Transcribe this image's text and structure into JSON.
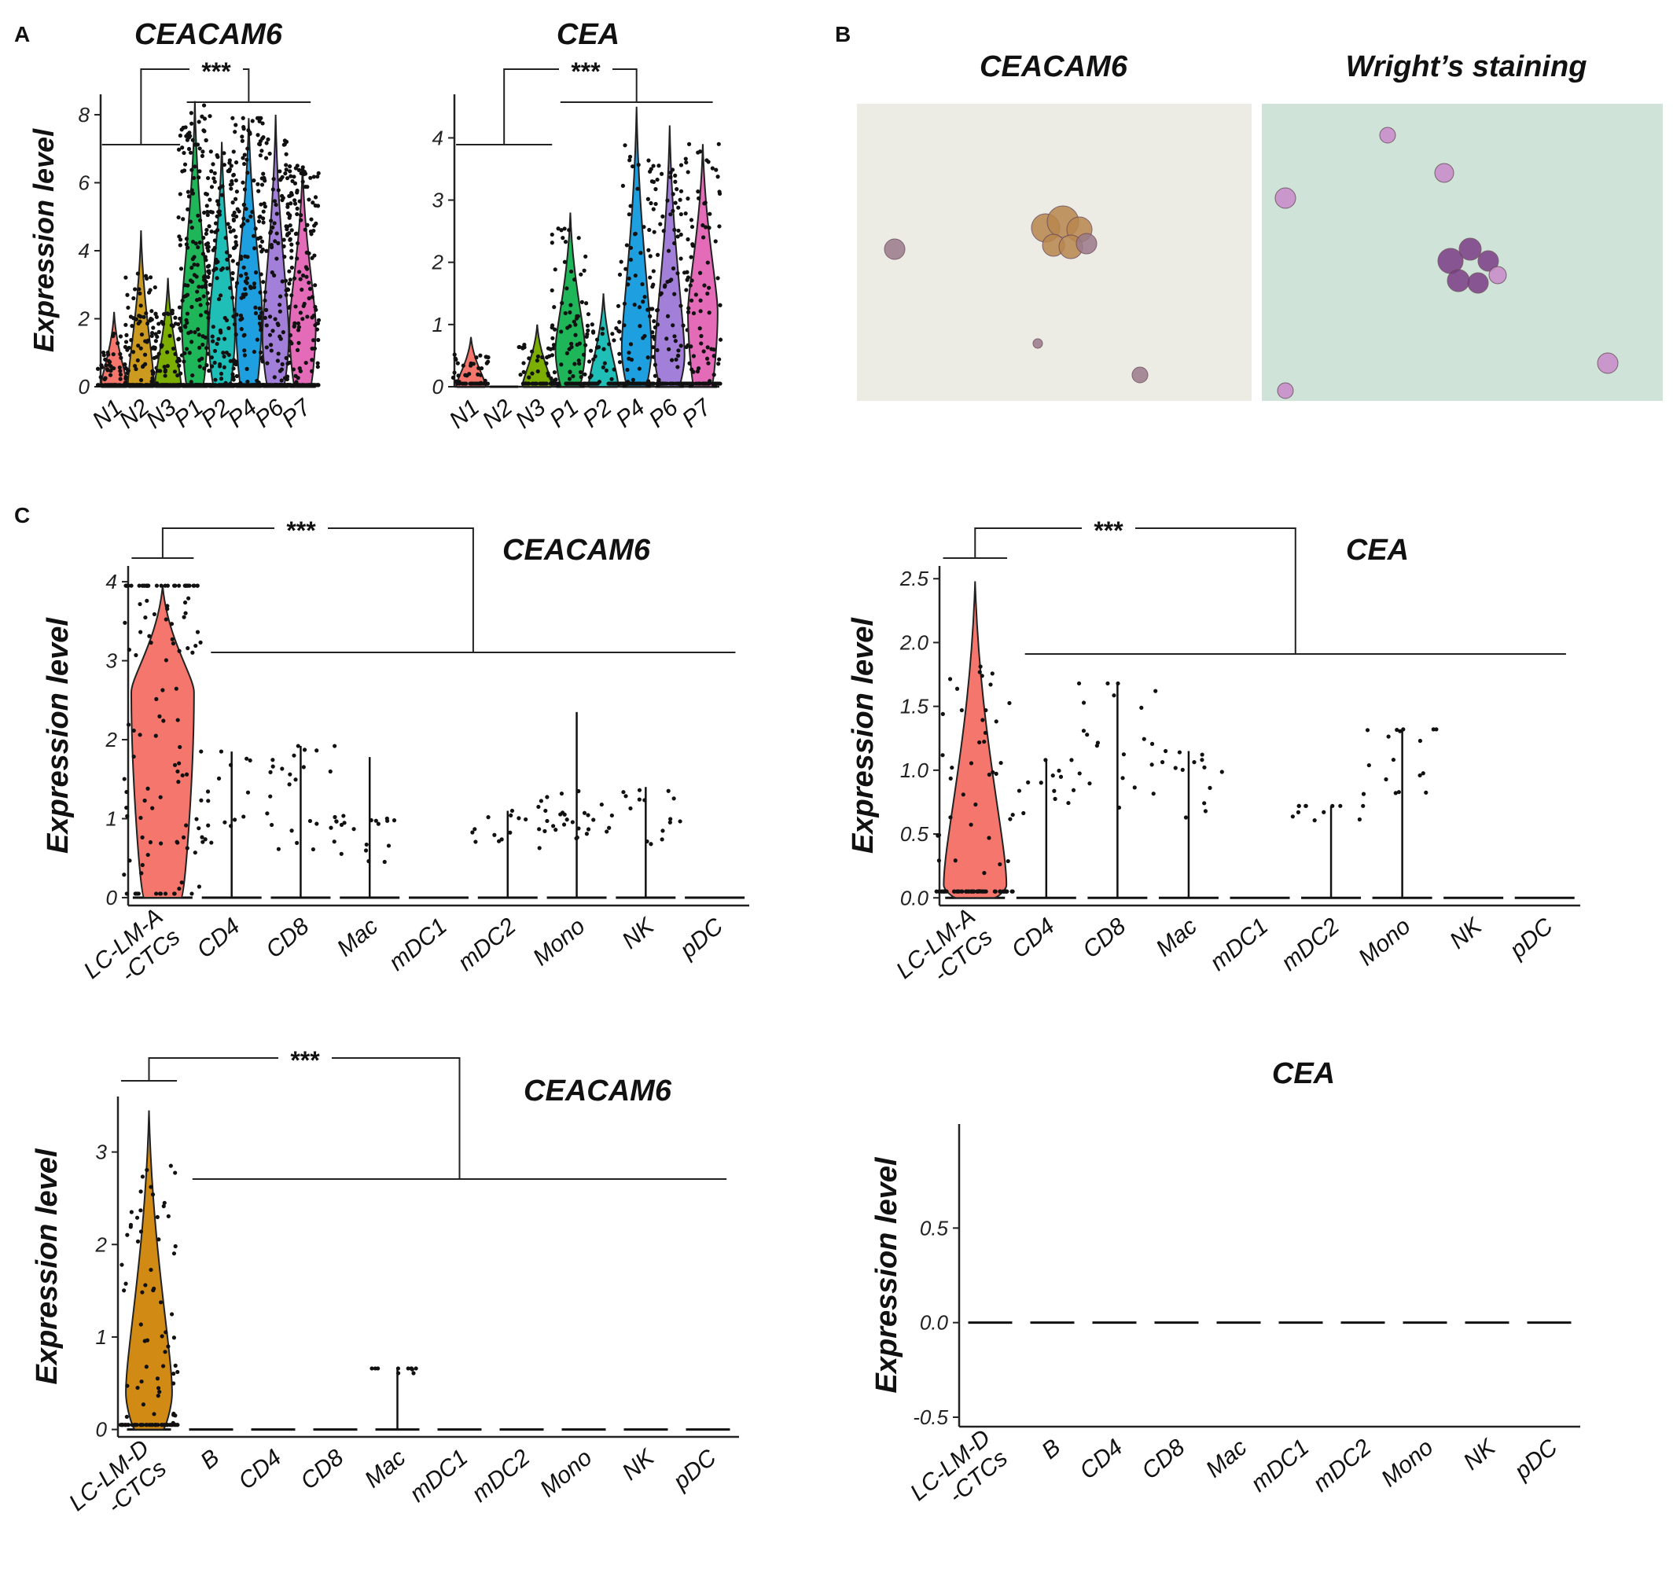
{
  "panel_labels": [
    "A",
    "B",
    "C"
  ],
  "images": [
    {
      "title": "CEACAM6",
      "background": "#ecebe4",
      "cell_colors": [
        "#b9874e",
        "#9a7a8a"
      ]
    },
    {
      "title": "Wright’s staining",
      "background": "#cfe3d9",
      "cell_colors": [
        "#c98ac9",
        "#7a3d86"
      ]
    }
  ],
  "chart_data": [
    {
      "type": "violin",
      "title": "CEACAM6",
      "ylabel": "Expression level",
      "ylim": [
        0,
        8.6
      ],
      "yticks": [
        0,
        2,
        4,
        6,
        8
      ],
      "categories": [
        "N1",
        "N2",
        "N3",
        "P1",
        "P2",
        "P4",
        "P6",
        "P7"
      ],
      "colors": [
        "#f4766d",
        "#cc9a1e",
        "#7cae00",
        "#1fb65a",
        "#1fbfb8",
        "#1e9fdf",
        "#a27fd8",
        "#e46bb8"
      ],
      "max": [
        2.2,
        4.6,
        3.2,
        8.4,
        7.2,
        7.9,
        8.0,
        6.5
      ],
      "median": [
        0,
        0,
        0,
        2.1,
        1.6,
        2.3,
        1.5,
        1.8
      ],
      "significance": {
        "label": "***",
        "groups": [
          [
            "N1",
            "N2",
            "N3"
          ],
          [
            "P1",
            "P2",
            "P4",
            "P6",
            "P7"
          ]
        ]
      }
    },
    {
      "type": "violin",
      "title": "CEA",
      "ylabel": "",
      "ylim": [
        0,
        4.7
      ],
      "yticks": [
        0,
        1,
        2,
        3,
        4
      ],
      "categories": [
        "N1",
        "N2",
        "N3",
        "P1",
        "P2",
        "P4",
        "P6",
        "P7"
      ],
      "colors": [
        "#f4766d",
        "#cc9a1e",
        "#7cae00",
        "#1fb65a",
        "#1fbfb8",
        "#1e9fdf",
        "#a27fd8",
        "#e46bb8"
      ],
      "max": [
        0.8,
        0,
        1.0,
        2.8,
        1.5,
        4.5,
        4.2,
        3.9
      ],
      "median": [
        0,
        0,
        0,
        0.6,
        0,
        0.6,
        0.5,
        1.2
      ],
      "significance": {
        "label": "***",
        "groups": [
          [
            "N1",
            "N2",
            "N3"
          ],
          [
            "P1",
            "P2",
            "P4",
            "P6",
            "P7"
          ]
        ]
      }
    },
    {
      "type": "violin",
      "title": "CEACAM6",
      "ylabel": "Expression level",
      "ylim": [
        -0.1,
        4.2
      ],
      "yticks": [
        0,
        1,
        2,
        3,
        4
      ],
      "categories": [
        "LC-LM-A -CTCs",
        "CD4",
        "CD8",
        "Mac",
        "mDC1",
        "mDC2",
        "Mono",
        "NK",
        "pDC"
      ],
      "colors": [
        "#f4766d",
        "#000000",
        "#000000",
        "#000000",
        "#000000",
        "#000000",
        "#000000",
        "#000000",
        "#000000"
      ],
      "max": [
        3.95,
        1.85,
        1.92,
        1.78,
        0,
        1.1,
        2.35,
        1.4,
        0
      ],
      "median": [
        2.6,
        0,
        0,
        0.75,
        0,
        0,
        1.05,
        0,
        0
      ],
      "significance": {
        "label": "***",
        "groups": [
          [
            "LC-LM-A -CTCs"
          ],
          [
            "CD4",
            "CD8",
            "Mac",
            "mDC1",
            "mDC2",
            "Mono",
            "NK",
            "pDC"
          ]
        ]
      }
    },
    {
      "type": "violin",
      "title": "CEA",
      "ylabel": "Expression level",
      "ylim": [
        -0.06,
        2.6
      ],
      "yticks": [
        0.0,
        0.5,
        1.0,
        1.5,
        2.0,
        2.5
      ],
      "categories": [
        "LC-LM-A -CTCs",
        "CD4",
        "CD8",
        "Mac",
        "mDC1",
        "mDC2",
        "Mono",
        "NK",
        "pDC"
      ],
      "colors": [
        "#f4766d",
        "#000000",
        "#000000",
        "#000000",
        "#000000",
        "#000000",
        "#000000",
        "#000000",
        "#000000"
      ],
      "max": [
        2.48,
        1.08,
        1.68,
        1.15,
        0,
        0.72,
        1.32,
        0,
        0
      ],
      "median": [
        0.1,
        0,
        0,
        0.9,
        0,
        0,
        1.1,
        0,
        0
      ],
      "significance": {
        "label": "***",
        "groups": [
          [
            "LC-LM-A -CTCs"
          ],
          [
            "CD4",
            "CD8",
            "Mac",
            "mDC1",
            "mDC2",
            "Mono",
            "NK",
            "pDC"
          ]
        ]
      }
    },
    {
      "type": "violin",
      "title": "CEACAM6",
      "ylabel": "Expression level",
      "ylim": [
        -0.08,
        3.6
      ],
      "yticks": [
        0,
        1,
        2,
        3
      ],
      "categories": [
        "LC-LM-D -CTCs",
        "B",
        "CD4",
        "CD8",
        "Mac",
        "mDC1",
        "mDC2",
        "Mono",
        "NK",
        "pDC"
      ],
      "colors": [
        "#d18b14",
        "#000000",
        "#000000",
        "#000000",
        "#000000",
        "#000000",
        "#000000",
        "#000000",
        "#000000",
        "#000000"
      ],
      "max": [
        3.45,
        0,
        0,
        0,
        0.66,
        0,
        0,
        0,
        0,
        0
      ],
      "median": [
        0.4,
        0,
        0,
        0,
        0,
        0,
        0,
        0,
        0,
        0
      ],
      "significance": {
        "label": "***",
        "groups": [
          [
            "LC-LM-D -CTCs"
          ],
          [
            "B",
            "CD4",
            "CD8",
            "Mac",
            "mDC1",
            "mDC2",
            "Mono",
            "NK",
            "pDC"
          ]
        ]
      }
    },
    {
      "type": "violin",
      "title": "CEA",
      "ylabel": "Expression level",
      "ylim": [
        -0.55,
        1.05
      ],
      "yticks": [
        -0.5,
        0,
        0.5
      ],
      "categories": [
        "LC-LM-D -CTCs",
        "B",
        "CD4",
        "CD8",
        "Mac",
        "mDC1",
        "mDC2",
        "Mono",
        "NK",
        "pDC"
      ],
      "colors": [
        "#000000",
        "#000000",
        "#000000",
        "#000000",
        "#000000",
        "#000000",
        "#000000",
        "#000000",
        "#000000",
        "#000000"
      ],
      "max": [
        0,
        0,
        0,
        0,
        0,
        0,
        0,
        0,
        0,
        0
      ],
      "median": [
        0,
        0,
        0,
        0,
        0,
        0,
        0,
        0,
        0,
        0
      ]
    }
  ]
}
